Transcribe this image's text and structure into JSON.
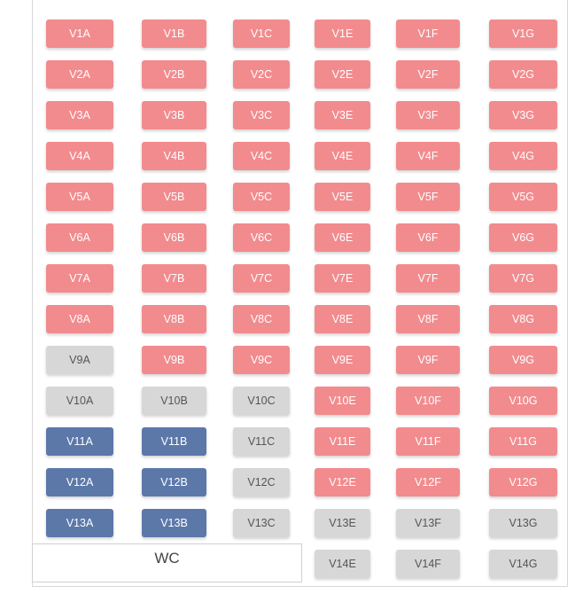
{
  "colors": {
    "available": "#f28b8e",
    "occupied": "#d7d7d7",
    "selected": "#5b78a9"
  },
  "wc_label": "WC",
  "rows": [
    [
      {
        "label": "V1A",
        "status": "available"
      },
      {
        "label": "V1B",
        "status": "available"
      },
      {
        "label": "V1C",
        "status": "available"
      },
      {
        "label": "V1E",
        "status": "available"
      },
      {
        "label": "V1F",
        "status": "available"
      },
      {
        "label": "V1G",
        "status": "available"
      }
    ],
    [
      {
        "label": "V2A",
        "status": "available"
      },
      {
        "label": "V2B",
        "status": "available"
      },
      {
        "label": "V2C",
        "status": "available"
      },
      {
        "label": "V2E",
        "status": "available"
      },
      {
        "label": "V2F",
        "status": "available"
      },
      {
        "label": "V2G",
        "status": "available"
      }
    ],
    [
      {
        "label": "V3A",
        "status": "available"
      },
      {
        "label": "V3B",
        "status": "available"
      },
      {
        "label": "V3C",
        "status": "available"
      },
      {
        "label": "V3E",
        "status": "available"
      },
      {
        "label": "V3F",
        "status": "available"
      },
      {
        "label": "V3G",
        "status": "available"
      }
    ],
    [
      {
        "label": "V4A",
        "status": "available"
      },
      {
        "label": "V4B",
        "status": "available"
      },
      {
        "label": "V4C",
        "status": "available"
      },
      {
        "label": "V4E",
        "status": "available"
      },
      {
        "label": "V4F",
        "status": "available"
      },
      {
        "label": "V4G",
        "status": "available"
      }
    ],
    [
      {
        "label": "V5A",
        "status": "available"
      },
      {
        "label": "V5B",
        "status": "available"
      },
      {
        "label": "V5C",
        "status": "available"
      },
      {
        "label": "V5E",
        "status": "available"
      },
      {
        "label": "V5F",
        "status": "available"
      },
      {
        "label": "V5G",
        "status": "available"
      }
    ],
    [
      {
        "label": "V6A",
        "status": "available"
      },
      {
        "label": "V6B",
        "status": "available"
      },
      {
        "label": "V6C",
        "status": "available"
      },
      {
        "label": "V6E",
        "status": "available"
      },
      {
        "label": "V6F",
        "status": "available"
      },
      {
        "label": "V6G",
        "status": "available"
      }
    ],
    [
      {
        "label": "V7A",
        "status": "available"
      },
      {
        "label": "V7B",
        "status": "available"
      },
      {
        "label": "V7C",
        "status": "available"
      },
      {
        "label": "V7E",
        "status": "available"
      },
      {
        "label": "V7F",
        "status": "available"
      },
      {
        "label": "V7G",
        "status": "available"
      }
    ],
    [
      {
        "label": "V8A",
        "status": "available"
      },
      {
        "label": "V8B",
        "status": "available"
      },
      {
        "label": "V8C",
        "status": "available"
      },
      {
        "label": "V8E",
        "status": "available"
      },
      {
        "label": "V8F",
        "status": "available"
      },
      {
        "label": "V8G",
        "status": "available"
      }
    ],
    [
      {
        "label": "V9A",
        "status": "occupied"
      },
      {
        "label": "V9B",
        "status": "available"
      },
      {
        "label": "V9C",
        "status": "available"
      },
      {
        "label": "V9E",
        "status": "available"
      },
      {
        "label": "V9F",
        "status": "available"
      },
      {
        "label": "V9G",
        "status": "available"
      }
    ],
    [
      {
        "label": "V10A",
        "status": "occupied"
      },
      {
        "label": "V10B",
        "status": "occupied"
      },
      {
        "label": "V10C",
        "status": "occupied"
      },
      {
        "label": "V10E",
        "status": "available"
      },
      {
        "label": "V10F",
        "status": "available"
      },
      {
        "label": "V10G",
        "status": "available"
      }
    ],
    [
      {
        "label": "V11A",
        "status": "selected"
      },
      {
        "label": "V11B",
        "status": "selected"
      },
      {
        "label": "V11C",
        "status": "occupied"
      },
      {
        "label": "V11E",
        "status": "available"
      },
      {
        "label": "V11F",
        "status": "available"
      },
      {
        "label": "V11G",
        "status": "available"
      }
    ],
    [
      {
        "label": "V12A",
        "status": "selected"
      },
      {
        "label": "V12B",
        "status": "selected"
      },
      {
        "label": "V12C",
        "status": "occupied"
      },
      {
        "label": "V12E",
        "status": "available"
      },
      {
        "label": "V12F",
        "status": "available"
      },
      {
        "label": "V12G",
        "status": "available"
      }
    ],
    [
      {
        "label": "V13A",
        "status": "selected"
      },
      {
        "label": "V13B",
        "status": "selected"
      },
      {
        "label": "V13C",
        "status": "occupied"
      },
      {
        "label": "V13E",
        "status": "occupied"
      },
      {
        "label": "V13F",
        "status": "occupied"
      },
      {
        "label": "V13G",
        "status": "occupied"
      }
    ],
    [
      null,
      null,
      null,
      {
        "label": "V14E",
        "status": "occupied"
      },
      {
        "label": "V14F",
        "status": "occupied"
      },
      {
        "label": "V14G",
        "status": "occupied"
      }
    ]
  ]
}
